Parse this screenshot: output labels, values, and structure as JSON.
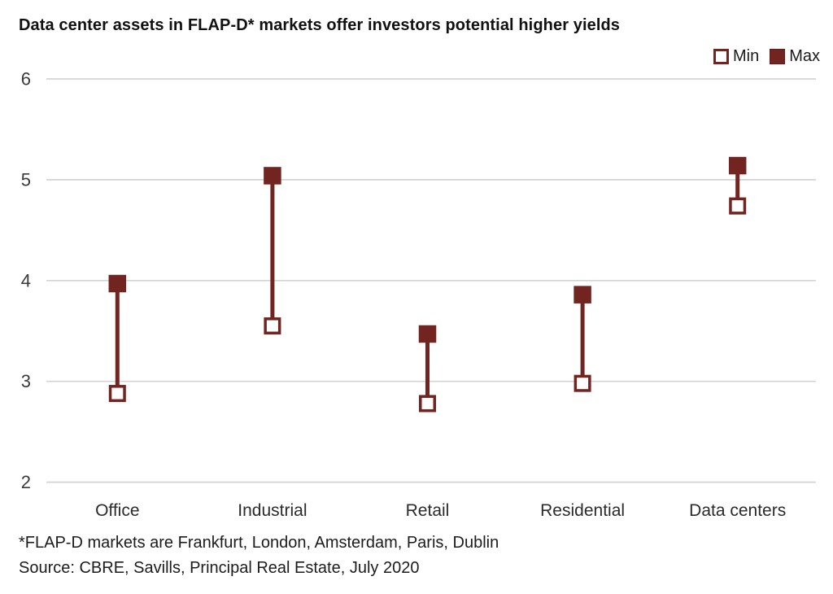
{
  "title": "Data center assets in FLAP-D* markets offer investors potential higher yields",
  "legend": {
    "min_label": "Min",
    "max_label": "Max"
  },
  "footnotes": {
    "line1": "*FLAP-D markets are Frankfurt, London, Amsterdam, Paris, Dublin",
    "line2": "Source: CBRE, Savills, Principal Real Estate, July 2020"
  },
  "colors": {
    "accent": "#722421",
    "gridline": "#d4d4d4",
    "tick_text": "#3a3a3a",
    "category_text": "#2b2b2b"
  },
  "chart_data": {
    "type": "range-dumbbell (min-max yields, %)",
    "categories": [
      "Office",
      "Industrial",
      "Retail",
      "Residential",
      "Data centers"
    ],
    "series": [
      {
        "name": "Min",
        "values": [
          2.88,
          3.55,
          2.78,
          2.98,
          4.74
        ]
      },
      {
        "name": "Max",
        "values": [
          3.97,
          5.04,
          3.47,
          3.86,
          5.14
        ]
      }
    ],
    "title": "Data center assets in FLAP-D* markets offer investors potential higher yields",
    "xlabel": "",
    "ylabel": "",
    "ylim": [
      2,
      6
    ],
    "yticks": [
      2,
      3,
      4,
      5,
      6
    ],
    "grid": "horizontal",
    "legend_position": "top-right"
  }
}
